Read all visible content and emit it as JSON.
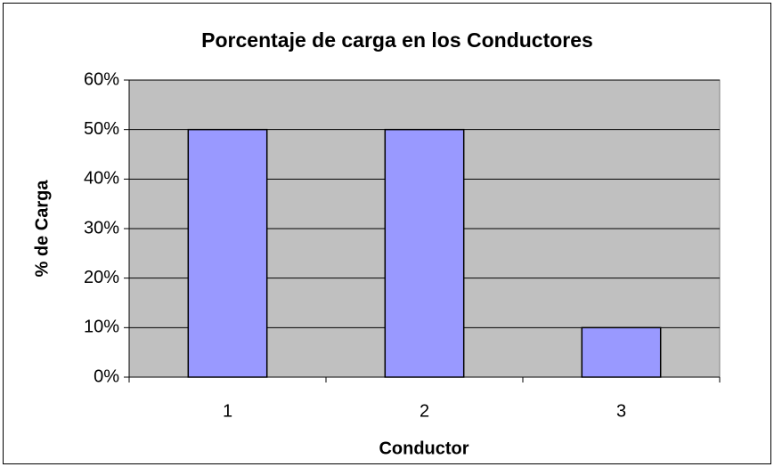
{
  "chart_data": {
    "type": "bar",
    "title": "Porcentaje de carga en los Conductores",
    "x_label": "Conductor",
    "y_label": "% de Carga",
    "categories": [
      "1",
      "2",
      "3"
    ],
    "values": [
      50,
      50,
      10
    ],
    "color": "#9999ff",
    "ylim": [
      0,
      60
    ],
    "yticks": [
      {
        "value": 0,
        "label": "0%"
      },
      {
        "value": 10,
        "label": "10%"
      },
      {
        "value": 20,
        "label": "20%"
      },
      {
        "value": 30,
        "label": "30%"
      },
      {
        "value": 40,
        "label": "40%"
      },
      {
        "value": 50,
        "label": "50%"
      },
      {
        "value": 60,
        "label": "60%"
      }
    ],
    "grid": true
  }
}
